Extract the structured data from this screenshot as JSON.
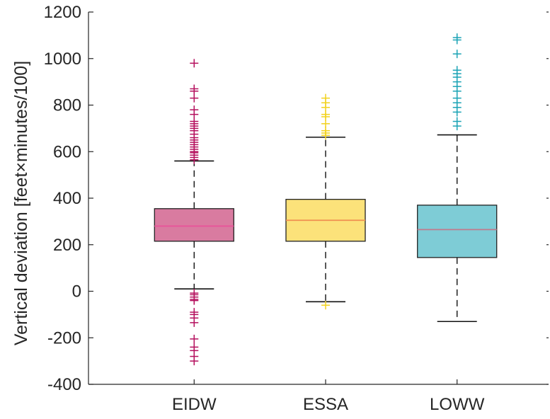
{
  "chart_data": {
    "type": "box",
    "title": "",
    "xlabel": "",
    "ylabel": "Vertical deviation [feet×minutes/100]",
    "ylim": [
      -400,
      1200
    ],
    "yticks": [
      -400,
      -200,
      0,
      200,
      400,
      600,
      800,
      1000,
      1200
    ],
    "ytick_labels": [
      "-400",
      "-200",
      "0",
      "200",
      "400",
      "600",
      "800",
      "1000",
      "1200"
    ],
    "categories": [
      "EIDW",
      "ESSA",
      "LOWW"
    ],
    "grid": false,
    "legend": "none",
    "series": [
      {
        "category": "EIDW",
        "whisker_low": 10,
        "q1": 215,
        "median": 280,
        "q3": 355,
        "whisker_high": 560,
        "outliers": [
          -300,
          -280,
          -255,
          -240,
          -205,
          -135,
          -115,
          -100,
          -90,
          -40,
          -35,
          -25,
          -15,
          -8,
          565,
          575,
          585,
          595,
          600,
          610,
          620,
          630,
          640,
          650,
          660,
          675,
          690,
          700,
          710,
          720,
          730,
          760,
          780,
          830,
          860,
          870,
          980
        ],
        "box_color": "#D97BA0",
        "edge_color": "#222222",
        "outlier_color": "#B5105E",
        "median_color": "#E8559A"
      },
      {
        "category": "ESSA",
        "whisker_low": -45,
        "q1": 215,
        "median": 305,
        "q3": 395,
        "whisker_high": 662,
        "outliers": [
          -60,
          670,
          680,
          690,
          720,
          750,
          760,
          790,
          810,
          830
        ],
        "box_color": "#FCE27A",
        "edge_color": "#222222",
        "outlier_color": "#F2D21F",
        "median_color": "#F09050"
      },
      {
        "category": "LOWW",
        "whisker_low": -130,
        "q1": 145,
        "median": 265,
        "q3": 370,
        "whisker_high": 672,
        "outliers": [
          710,
          730,
          770,
          790,
          810,
          830,
          860,
          880,
          900,
          920,
          935,
          950,
          1020,
          1080,
          1090
        ],
        "box_color": "#7ECCD6",
        "edge_color": "#222222",
        "outlier_color": "#1BA3B5",
        "median_color": "#C07A8C"
      }
    ]
  }
}
